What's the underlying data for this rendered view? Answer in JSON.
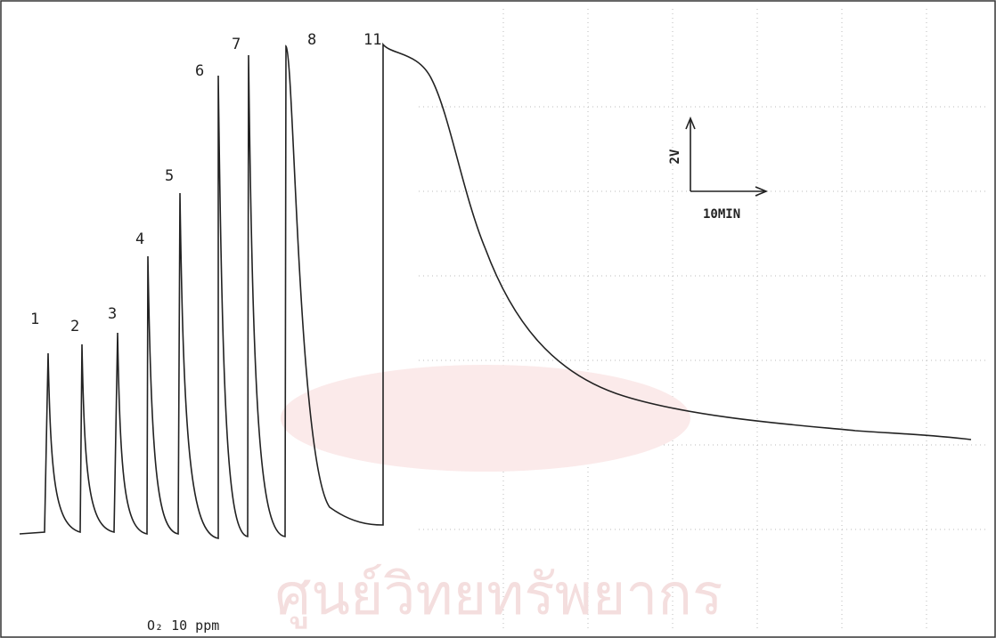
{
  "peak_labels": [
    "1",
    "2",
    "3",
    "4",
    "5",
    "6",
    "7",
    "8",
    "11"
  ],
  "scale_bar": {
    "vertical": "2V",
    "horizontal": "10MIN"
  },
  "annotation": "O₂ 10 ppm",
  "watermark": "ศูนย์วิทยทรัพยากร"
}
